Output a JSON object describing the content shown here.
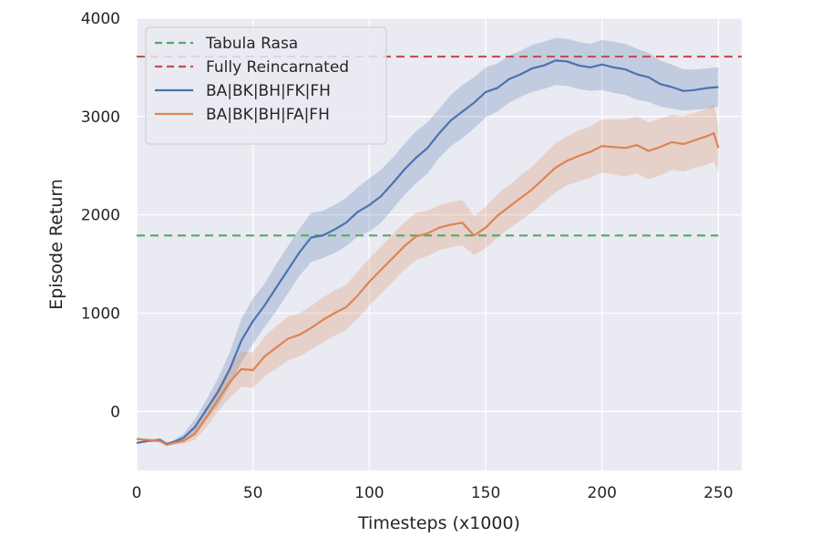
{
  "chart_data": {
    "type": "line",
    "title": "",
    "xlabel": "Timesteps (x1000)",
    "ylabel": "Episode Return",
    "xlim": [
      0,
      260
    ],
    "ylim": [
      -600,
      4000
    ],
    "xticks": [
      0,
      50,
      100,
      150,
      200,
      250
    ],
    "xtick_labels": [
      "0",
      "50",
      "100",
      "150",
      "200",
      "250"
    ],
    "yticks": [
      0,
      1000,
      2000,
      3000,
      4000
    ],
    "ytick_labels": [
      "0",
      "1000",
      "2000",
      "3000",
      "4000"
    ],
    "grid": true,
    "background": "#eaeaf2",
    "legend_position": "top-left",
    "legend": [
      {
        "label": "Tabula Rasa",
        "style": "dashed",
        "color": "#55a868"
      },
      {
        "label": "Fully Reincarnated",
        "style": "dashed",
        "color": "#c44e52"
      },
      {
        "label": "BA|BK|BH|FK|FH",
        "style": "solid",
        "color": "#4c72b0"
      },
      {
        "label": "BA|BK|BH|FA|FH",
        "style": "solid",
        "color": "#dd8452"
      }
    ],
    "hlines": [
      {
        "name": "Tabula Rasa",
        "y": 1790,
        "color": "#55a868",
        "x_range": [
          0,
          250
        ]
      },
      {
        "name": "Fully Reincarnated",
        "y": 3610,
        "color": "#c44e52",
        "x_range": [
          0,
          260
        ]
      }
    ],
    "series": [
      {
        "name": "BA|BK|BH|FK|FH",
        "color": "#4c72b0",
        "x": [
          0,
          5,
          10,
          13,
          16,
          20,
          25,
          30,
          35,
          40,
          45,
          50,
          55,
          60,
          65,
          70,
          75,
          80,
          85,
          90,
          95,
          100,
          105,
          110,
          115,
          120,
          125,
          130,
          135,
          140,
          145,
          150,
          155,
          160,
          165,
          170,
          175,
          180,
          185,
          190,
          195,
          200,
          205,
          210,
          215,
          220,
          225,
          230,
          235,
          240,
          245,
          250
        ],
        "y": [
          -320,
          -300,
          -290,
          -330,
          -310,
          -270,
          -160,
          20,
          200,
          430,
          720,
          920,
          1080,
          1260,
          1440,
          1620,
          1770,
          1790,
          1850,
          1920,
          2030,
          2100,
          2190,
          2320,
          2460,
          2580,
          2680,
          2830,
          2960,
          3050,
          3140,
          3250,
          3290,
          3380,
          3430,
          3490,
          3520,
          3570,
          3560,
          3520,
          3500,
          3530,
          3500,
          3480,
          3430,
          3400,
          3330,
          3300,
          3260,
          3270,
          3290,
          3300
        ],
        "band_lower": [
          -330,
          -310,
          -310,
          -340,
          -330,
          -310,
          -240,
          -80,
          60,
          260,
          500,
          690,
          860,
          1020,
          1200,
          1380,
          1520,
          1560,
          1610,
          1680,
          1780,
          1830,
          1920,
          2060,
          2200,
          2320,
          2420,
          2580,
          2700,
          2780,
          2880,
          2990,
          3050,
          3140,
          3200,
          3250,
          3280,
          3320,
          3310,
          3280,
          3260,
          3270,
          3240,
          3220,
          3170,
          3150,
          3100,
          3080,
          3060,
          3070,
          3080,
          3100
        ],
        "band_upper": [
          -310,
          -290,
          -270,
          -320,
          -290,
          -230,
          -80,
          120,
          340,
          600,
          940,
          1150,
          1300,
          1500,
          1680,
          1860,
          2020,
          2040,
          2100,
          2170,
          2280,
          2370,
          2460,
          2580,
          2720,
          2850,
          2940,
          3080,
          3220,
          3320,
          3400,
          3500,
          3540,
          3620,
          3670,
          3730,
          3760,
          3800,
          3790,
          3760,
          3740,
          3780,
          3760,
          3740,
          3690,
          3650,
          3570,
          3530,
          3480,
          3480,
          3490,
          3500
        ]
      },
      {
        "name": "BA|BK|BH|FA|FH",
        "color": "#dd8452",
        "x": [
          0,
          5,
          10,
          13,
          16,
          20,
          25,
          30,
          35,
          40,
          45,
          50,
          55,
          60,
          65,
          70,
          75,
          80,
          85,
          90,
          95,
          100,
          105,
          110,
          115,
          120,
          125,
          130,
          135,
          140,
          145,
          150,
          155,
          160,
          165,
          170,
          175,
          180,
          185,
          190,
          195,
          200,
          205,
          210,
          215,
          220,
          225,
          230,
          235,
          240,
          245,
          248,
          250
        ],
        "y": [
          -280,
          -290,
          -300,
          -340,
          -320,
          -300,
          -230,
          -60,
          120,
          300,
          430,
          420,
          560,
          650,
          740,
          780,
          850,
          930,
          1000,
          1060,
          1180,
          1320,
          1440,
          1560,
          1680,
          1780,
          1810,
          1870,
          1900,
          1920,
          1790,
          1870,
          1990,
          2080,
          2170,
          2260,
          2370,
          2480,
          2550,
          2600,
          2640,
          2700,
          2690,
          2680,
          2710,
          2650,
          2690,
          2740,
          2720,
          2760,
          2800,
          2830,
          2680
        ],
        "band_lower": [
          -290,
          -300,
          -320,
          -350,
          -340,
          -330,
          -290,
          -160,
          0,
          140,
          250,
          240,
          360,
          430,
          520,
          560,
          630,
          700,
          770,
          830,
          940,
          1080,
          1200,
          1320,
          1440,
          1540,
          1580,
          1640,
          1670,
          1690,
          1590,
          1660,
          1770,
          1860,
          1940,
          2030,
          2130,
          2230,
          2300,
          2340,
          2380,
          2430,
          2410,
          2390,
          2420,
          2360,
          2400,
          2460,
          2440,
          2480,
          2510,
          2540,
          2440
        ],
        "band_upper": [
          -270,
          -280,
          -280,
          -320,
          -300,
          -270,
          -170,
          40,
          250,
          460,
          610,
          600,
          760,
          870,
          960,
          1000,
          1070,
          1160,
          1230,
          1290,
          1420,
          1560,
          1680,
          1800,
          1920,
          2020,
          2040,
          2100,
          2130,
          2150,
          1990,
          2080,
          2210,
          2300,
          2400,
          2490,
          2610,
          2730,
          2800,
          2860,
          2900,
          2970,
          2970,
          2970,
          3000,
          2940,
          2980,
          3020,
          3000,
          3040,
          3080,
          3120,
          2920
        ]
      }
    ]
  }
}
